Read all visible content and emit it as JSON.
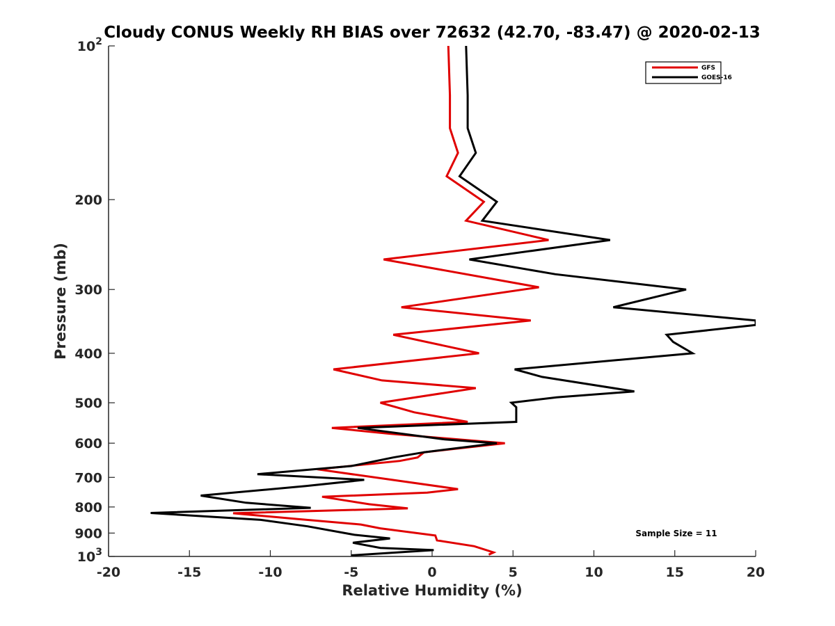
{
  "chart_data": {
    "type": "line",
    "title": "Cloudy CONUS Weekly RH BIAS over 72632 (42.70, -83.47) @ 2020-02-13",
    "xlabel": "Relative Humidity (%)",
    "ylabel": "Pressure (mb)",
    "xlim": [
      -20,
      20
    ],
    "ylim": [
      100,
      1000
    ],
    "y_scale": "log",
    "y_reversed": true,
    "grid": false,
    "legend_position": "top-right",
    "x_ticks": [
      "-20",
      "-15",
      "-10",
      "-5",
      "0",
      "5",
      "10",
      "15",
      "20"
    ],
    "y_ticks": [
      {
        "value": 100,
        "base": "10",
        "exp": "2"
      },
      {
        "value": 200,
        "label": "200"
      },
      {
        "value": 300,
        "label": "300"
      },
      {
        "value": 400,
        "label": "400"
      },
      {
        "value": 500,
        "label": "500"
      },
      {
        "value": 600,
        "label": "600"
      },
      {
        "value": 700,
        "label": "700"
      },
      {
        "value": 800,
        "label": "800"
      },
      {
        "value": 900,
        "label": "900"
      },
      {
        "value": 1000,
        "base": "10",
        "exp": "3"
      }
    ],
    "annotation": "Sample Size = 11",
    "series": [
      {
        "name": "GFS",
        "color": "#e00000",
        "points": [
          [
            1.0,
            100
          ],
          [
            1.1,
            125
          ],
          [
            1.1,
            145
          ],
          [
            1.6,
            162
          ],
          [
            0.9,
            180
          ],
          [
            3.2,
            202
          ],
          [
            2.1,
            220
          ],
          [
            7.2,
            240
          ],
          [
            -3.0,
            262
          ],
          [
            6.6,
            297
          ],
          [
            -1.9,
            325
          ],
          [
            6.1,
            345
          ],
          [
            -2.4,
            368
          ],
          [
            2.9,
            400
          ],
          [
            -6.1,
            430
          ],
          [
            -3.1,
            452
          ],
          [
            2.7,
            468
          ],
          [
            -3.2,
            500
          ],
          [
            -1.1,
            522
          ],
          [
            2.2,
            545
          ],
          [
            -6.2,
            560
          ],
          [
            -2.6,
            575
          ],
          [
            4.5,
            600
          ],
          [
            -0.5,
            625
          ],
          [
            -0.9,
            640
          ],
          [
            -2.0,
            650
          ],
          [
            -7.1,
            675
          ],
          [
            1.6,
            738
          ],
          [
            -0.3,
            750
          ],
          [
            -6.8,
            764
          ],
          [
            -3.9,
            790
          ],
          [
            -1.5,
            805
          ],
          [
            -12.3,
            823
          ],
          [
            -8.3,
            845
          ],
          [
            -4.4,
            866
          ],
          [
            -3.2,
            881
          ],
          [
            0.2,
            910
          ],
          [
            0.3,
            930
          ],
          [
            2.6,
            955
          ],
          [
            3.8,
            982
          ],
          [
            3.5,
            992
          ]
        ]
      },
      {
        "name": "GOES-16",
        "color": "#000000",
        "points": [
          [
            2.1,
            100
          ],
          [
            2.2,
            125
          ],
          [
            2.2,
            145
          ],
          [
            2.7,
            162
          ],
          [
            1.7,
            180
          ],
          [
            4.0,
            202
          ],
          [
            3.1,
            220
          ],
          [
            11.0,
            240
          ],
          [
            2.3,
            262
          ],
          [
            7.6,
            280
          ],
          [
            15.7,
            300
          ],
          [
            11.2,
            325
          ],
          [
            20.0,
            345
          ],
          [
            20.0,
            352
          ],
          [
            14.5,
            368
          ],
          [
            14.9,
            380
          ],
          [
            16.1,
            400
          ],
          [
            5.1,
            430
          ],
          [
            6.8,
            445
          ],
          [
            12.5,
            475
          ],
          [
            7.7,
            488
          ],
          [
            4.9,
            500
          ],
          [
            5.2,
            510
          ],
          [
            5.2,
            545
          ],
          [
            -4.6,
            560
          ],
          [
            0.8,
            590
          ],
          [
            4.0,
            600
          ],
          [
            -0.5,
            625
          ],
          [
            -2.4,
            640
          ],
          [
            -5.0,
            665
          ],
          [
            -10.8,
            690
          ],
          [
            -4.2,
            708
          ],
          [
            -7.8,
            728
          ],
          [
            -14.3,
            760
          ],
          [
            -11.5,
            785
          ],
          [
            -7.5,
            803
          ],
          [
            -17.4,
            822
          ],
          [
            -10.6,
            848
          ],
          [
            -7.7,
            873
          ],
          [
            -4.8,
            907
          ],
          [
            -2.6,
            922
          ],
          [
            -4.9,
            940
          ],
          [
            -3.2,
            962
          ],
          [
            0.1,
            972
          ],
          [
            -5.0,
            995
          ]
        ]
      }
    ]
  }
}
